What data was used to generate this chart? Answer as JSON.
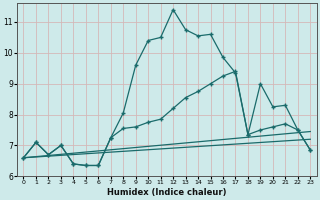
{
  "xlabel": "Humidex (Indice chaleur)",
  "bg_color": "#ceeaea",
  "grid_color": "#d4b8b8",
  "line_color": "#1a6b6b",
  "xlim": [
    -0.5,
    23.5
  ],
  "ylim": [
    6.0,
    11.6
  ],
  "xticks": [
    0,
    1,
    2,
    3,
    4,
    5,
    6,
    7,
    8,
    9,
    10,
    11,
    12,
    13,
    14,
    15,
    16,
    17,
    18,
    19,
    20,
    21,
    22,
    23
  ],
  "yticks": [
    6,
    7,
    8,
    9,
    10,
    11
  ],
  "series1_x": [
    0,
    1,
    2,
    3,
    4,
    5,
    6,
    7,
    8,
    9,
    10,
    11,
    12,
    13,
    14,
    15,
    16,
    17,
    18,
    19,
    20,
    21,
    22,
    23
  ],
  "series1_y": [
    6.6,
    7.1,
    6.7,
    7.0,
    6.4,
    6.35,
    6.35,
    7.25,
    8.05,
    9.6,
    10.4,
    10.5,
    11.4,
    10.75,
    10.55,
    10.6,
    9.85,
    9.35,
    7.35,
    9.0,
    8.25,
    8.3,
    7.5,
    6.85
  ],
  "series2_x": [
    0,
    1,
    2,
    3,
    4,
    5,
    6,
    7,
    8,
    9,
    10,
    11,
    12,
    13,
    14,
    15,
    16,
    17,
    18,
    19,
    20,
    21,
    22,
    23
  ],
  "series2_y": [
    6.6,
    7.1,
    6.7,
    7.0,
    6.4,
    6.35,
    6.35,
    7.25,
    7.55,
    7.6,
    7.75,
    7.85,
    8.2,
    8.55,
    8.75,
    9.0,
    9.25,
    9.4,
    7.35,
    7.5,
    7.6,
    7.7,
    7.5,
    6.85
  ],
  "series3_x": [
    0,
    23
  ],
  "series3_y": [
    6.6,
    7.45
  ],
  "series4_x": [
    0,
    23
  ],
  "series4_y": [
    6.6,
    7.2
  ]
}
